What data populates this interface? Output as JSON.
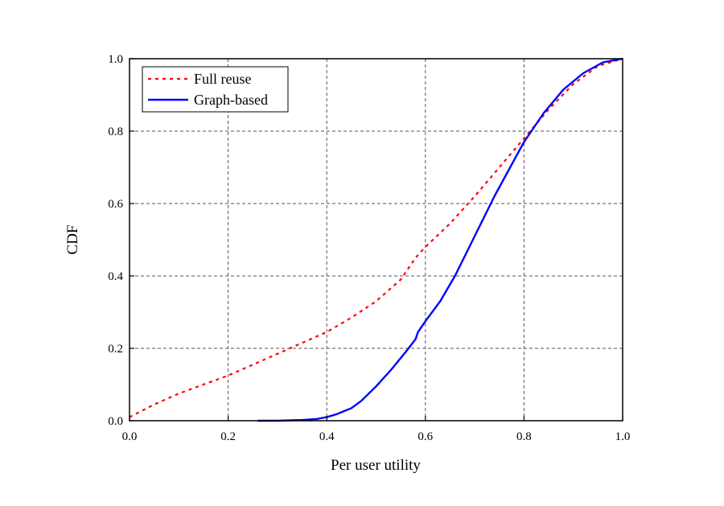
{
  "chart_data": {
    "type": "line",
    "title": "",
    "xlabel": "Per user utility",
    "ylabel": "CDF",
    "xlim": [
      0.0,
      1.0
    ],
    "ylim": [
      0.0,
      1.0
    ],
    "xticks": [
      "0.0",
      "0.2",
      "0.4",
      "0.6",
      "0.8",
      "1.0"
    ],
    "yticks": [
      "0.0",
      "0.2",
      "0.4",
      "0.6",
      "0.8",
      "1.0"
    ],
    "grid": true,
    "legend_position": "top-left",
    "series": [
      {
        "name": "Full reuse",
        "color": "#ff0000",
        "style": "dotted",
        "x": [
          0.0,
          0.05,
          0.1,
          0.15,
          0.2,
          0.25,
          0.3,
          0.35,
          0.4,
          0.45,
          0.5,
          0.55,
          0.58,
          0.6,
          0.65,
          0.7,
          0.75,
          0.8,
          0.85,
          0.9,
          0.95,
          1.0
        ],
        "y": [
          0.01,
          0.045,
          0.075,
          0.1,
          0.125,
          0.155,
          0.185,
          0.215,
          0.245,
          0.285,
          0.33,
          0.39,
          0.45,
          0.48,
          0.545,
          0.62,
          0.7,
          0.78,
          0.86,
          0.93,
          0.98,
          1.0
        ]
      },
      {
        "name": "Graph-based",
        "color": "#0000ff",
        "style": "solid",
        "x": [
          0.26,
          0.3,
          0.35,
          0.38,
          0.4,
          0.42,
          0.45,
          0.47,
          0.5,
          0.53,
          0.56,
          0.58,
          0.585,
          0.6,
          0.63,
          0.66,
          0.7,
          0.74,
          0.78,
          0.8,
          0.84,
          0.88,
          0.92,
          0.96,
          1.0
        ],
        "y": [
          0.0,
          0.0,
          0.002,
          0.005,
          0.01,
          0.018,
          0.035,
          0.055,
          0.095,
          0.14,
          0.19,
          0.225,
          0.245,
          0.275,
          0.33,
          0.4,
          0.51,
          0.62,
          0.72,
          0.77,
          0.85,
          0.915,
          0.96,
          0.99,
          1.0
        ]
      }
    ]
  }
}
